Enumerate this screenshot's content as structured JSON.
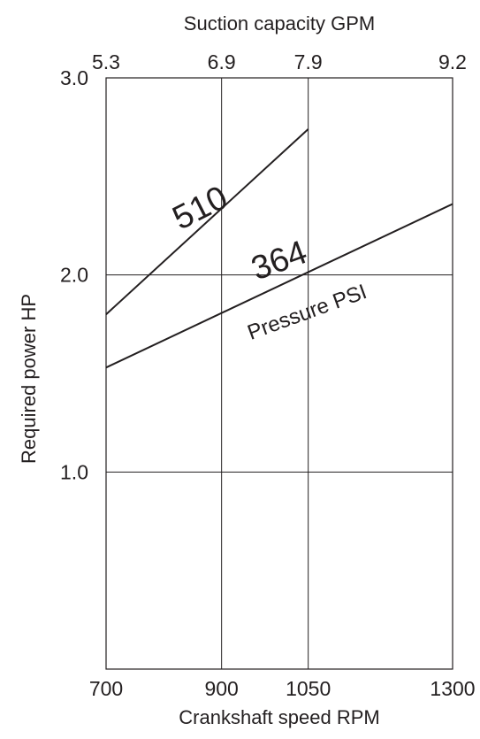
{
  "chart_data": {
    "type": "line",
    "title": "",
    "xlabel": "Crankshaft speed RPM",
    "x2label": "Suction capacity GPM",
    "ylabel": "Required power  HP",
    "xlim": [
      700,
      1300
    ],
    "ylim": [
      0,
      3.0
    ],
    "x_ticks": [
      700,
      900,
      1050,
      1300
    ],
    "x_tick_labels": [
      "700",
      "900",
      "1050",
      "1300"
    ],
    "x2_ticks": [
      700,
      900,
      1050,
      1300
    ],
    "x2_tick_labels": [
      "5.3",
      "6.9",
      "7.9",
      "9.2"
    ],
    "y_ticks": [
      1.0,
      2.0,
      3.0
    ],
    "y_tick_labels": [
      "1.0",
      "2.0",
      "3.0"
    ],
    "grid": true,
    "annotation": "Pressure PSI",
    "series": [
      {
        "name": "510",
        "x": [
          700,
          1050
        ],
        "y": [
          1.8,
          2.74
        ]
      },
      {
        "name": "364",
        "x": [
          700,
          1300
        ],
        "y": [
          1.53,
          2.36
        ]
      }
    ],
    "colors": {
      "line": "#231f20",
      "text": "#231f20"
    }
  }
}
